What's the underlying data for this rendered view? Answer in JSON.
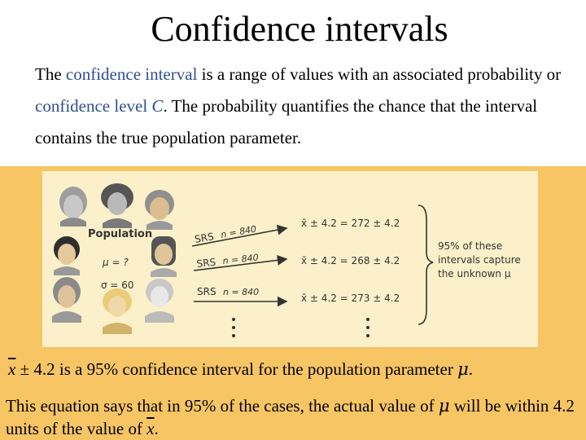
{
  "title": "Confidence intervals",
  "intro": {
    "part1": "The ",
    "term1": "confidence interval",
    "part2": " is a range of values with an associated probability or ",
    "term2": "confidence level ",
    "term2_var": "C",
    "part3": ". The probability quantifies the chance that the interval contains the true population parameter."
  },
  "figure": {
    "population_label": "Population",
    "mu_label": "μ = ?",
    "sigma_label": "σ = 60",
    "srs": [
      {
        "label": "SRS",
        "n": "n = 840",
        "result": "x̄ ± 4.2 = 272 ± 4.2"
      },
      {
        "label": "SRS",
        "n": "n = 840",
        "result": "x̄ ± 4.2 = 268 ± 4.2"
      },
      {
        "label": "SRS",
        "n": "n = 840",
        "result": "x̄ ± 4.2 = 273 ± 4.2"
      }
    ],
    "capture_note": [
      "95% of these",
      "intervals capture",
      "the unknown μ"
    ]
  },
  "statement1": {
    "xbar": "x",
    "text": " ± 4.2 is a 95% confidence interval for the population parameter ",
    "mu": "μ",
    "end": "."
  },
  "statement2": {
    "text1": "This equation says that in 95% of the cases, the actual value of ",
    "mu": "μ",
    "text2": " will be within 4.2 units of the value of ",
    "xbar": "x",
    "end": "."
  },
  "colors": {
    "panel": "#f7c564",
    "figure_bg": "#fbf0c9",
    "highlight": "#2f4f8f"
  }
}
